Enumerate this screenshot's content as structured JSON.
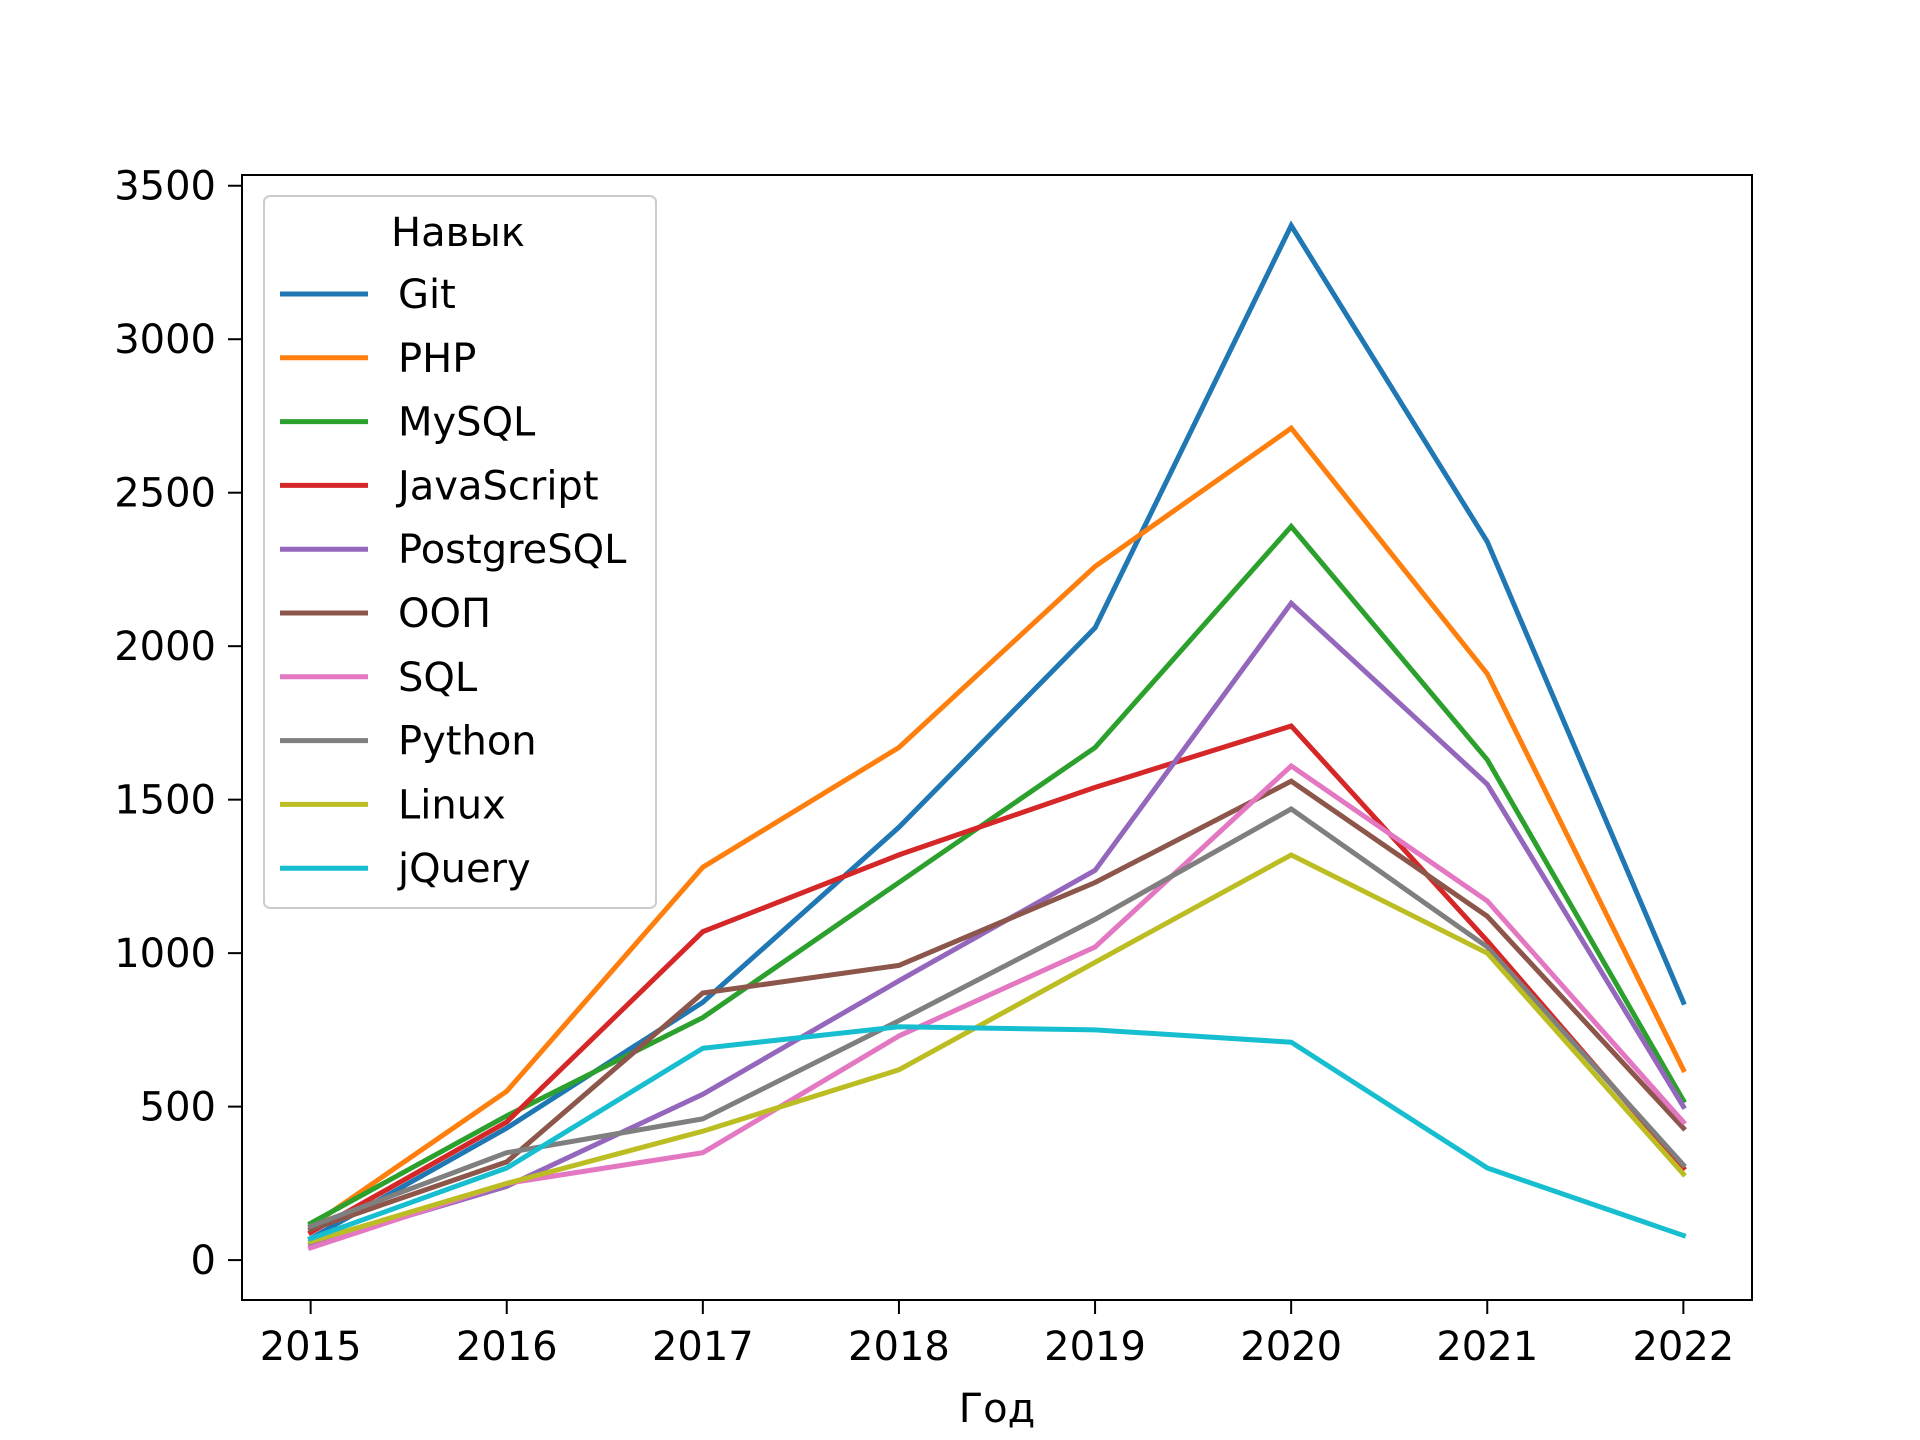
{
  "chart_data": {
    "type": "line",
    "title": "",
    "xlabel": "Год",
    "ylabel": "",
    "x": [
      2015,
      2016,
      2017,
      2018,
      2019,
      2020,
      2021,
      2022
    ],
    "xlim": [
      2014.65,
      2022.35
    ],
    "ylim": [
      -130,
      3535
    ],
    "yticks": [
      0,
      500,
      1000,
      1500,
      2000,
      2500,
      3000,
      3500
    ],
    "grid": false,
    "legend": {
      "title": "Навык",
      "placement": "top-left"
    },
    "series": [
      {
        "name": "Git",
        "color": "#1f77b4",
        "values": [
          70,
          430,
          840,
          1410,
          2060,
          3370,
          2340,
          840
        ]
      },
      {
        "name": "PHP",
        "color": "#ff7f0e",
        "values": [
          110,
          550,
          1280,
          1670,
          2260,
          2710,
          1910,
          620
        ]
      },
      {
        "name": "MySQL",
        "color": "#2ca02c",
        "values": [
          120,
          470,
          790,
          1230,
          1670,
          2390,
          1630,
          520
        ]
      },
      {
        "name": "JavaScript",
        "color": "#d62728",
        "values": [
          90,
          450,
          1070,
          1320,
          1540,
          1740,
          1040,
          300
        ]
      },
      {
        "name": "PostgreSQL",
        "color": "#9467bd",
        "values": [
          50,
          240,
          540,
          910,
          1270,
          2140,
          1550,
          500
        ]
      },
      {
        "name": "ООП",
        "color": "#8c564b",
        "values": [
          100,
          320,
          870,
          960,
          1230,
          1560,
          1120,
          430
        ]
      },
      {
        "name": "SQL",
        "color": "#e377c2",
        "values": [
          40,
          250,
          350,
          730,
          1020,
          1610,
          1170,
          450
        ]
      },
      {
        "name": "Python",
        "color": "#7f7f7f",
        "values": [
          110,
          350,
          460,
          780,
          1110,
          1470,
          1020,
          310
        ]
      },
      {
        "name": "Linux",
        "color": "#bcbd22",
        "values": [
          60,
          250,
          420,
          620,
          970,
          1320,
          1000,
          280
        ]
      },
      {
        "name": "jQuery",
        "color": "#17becf",
        "values": [
          70,
          300,
          690,
          760,
          750,
          710,
          300,
          80
        ]
      }
    ]
  }
}
